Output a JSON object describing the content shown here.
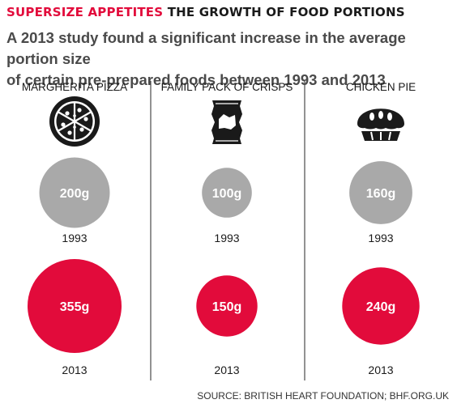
{
  "header": {
    "title_accent": "SUPERSIZE APPETITES",
    "title_main": "THE GROWTH OF FOOD PORTIONS",
    "subtitle_line1": "A 2013 study found a significant increase in the average portion size",
    "subtitle_line2": "of certain pre-prepared foods between 1993 and 2013"
  },
  "source": "SOURCE: BRITISH HEART FOUNDATION; BHF.ORG.UK",
  "colors": {
    "old": "#a9a9a9",
    "new": "#e20b3b",
    "divider": "#4a4a4a",
    "icon": "#1a1a1a"
  },
  "icons": [
    "pizza-icon",
    "crisps-packet-icon",
    "pie-icon"
  ],
  "chart_data": {
    "type": "bubble",
    "unit": "g",
    "categories": [
      "MARGHERITA PIZZA",
      "FAMILY PACK OF CRISPS",
      "CHICKEN PIE"
    ],
    "series": [
      {
        "name": "1993",
        "values": [
          200,
          100,
          160
        ]
      },
      {
        "name": "2013",
        "values": [
          355,
          150,
          240
        ]
      }
    ]
  }
}
